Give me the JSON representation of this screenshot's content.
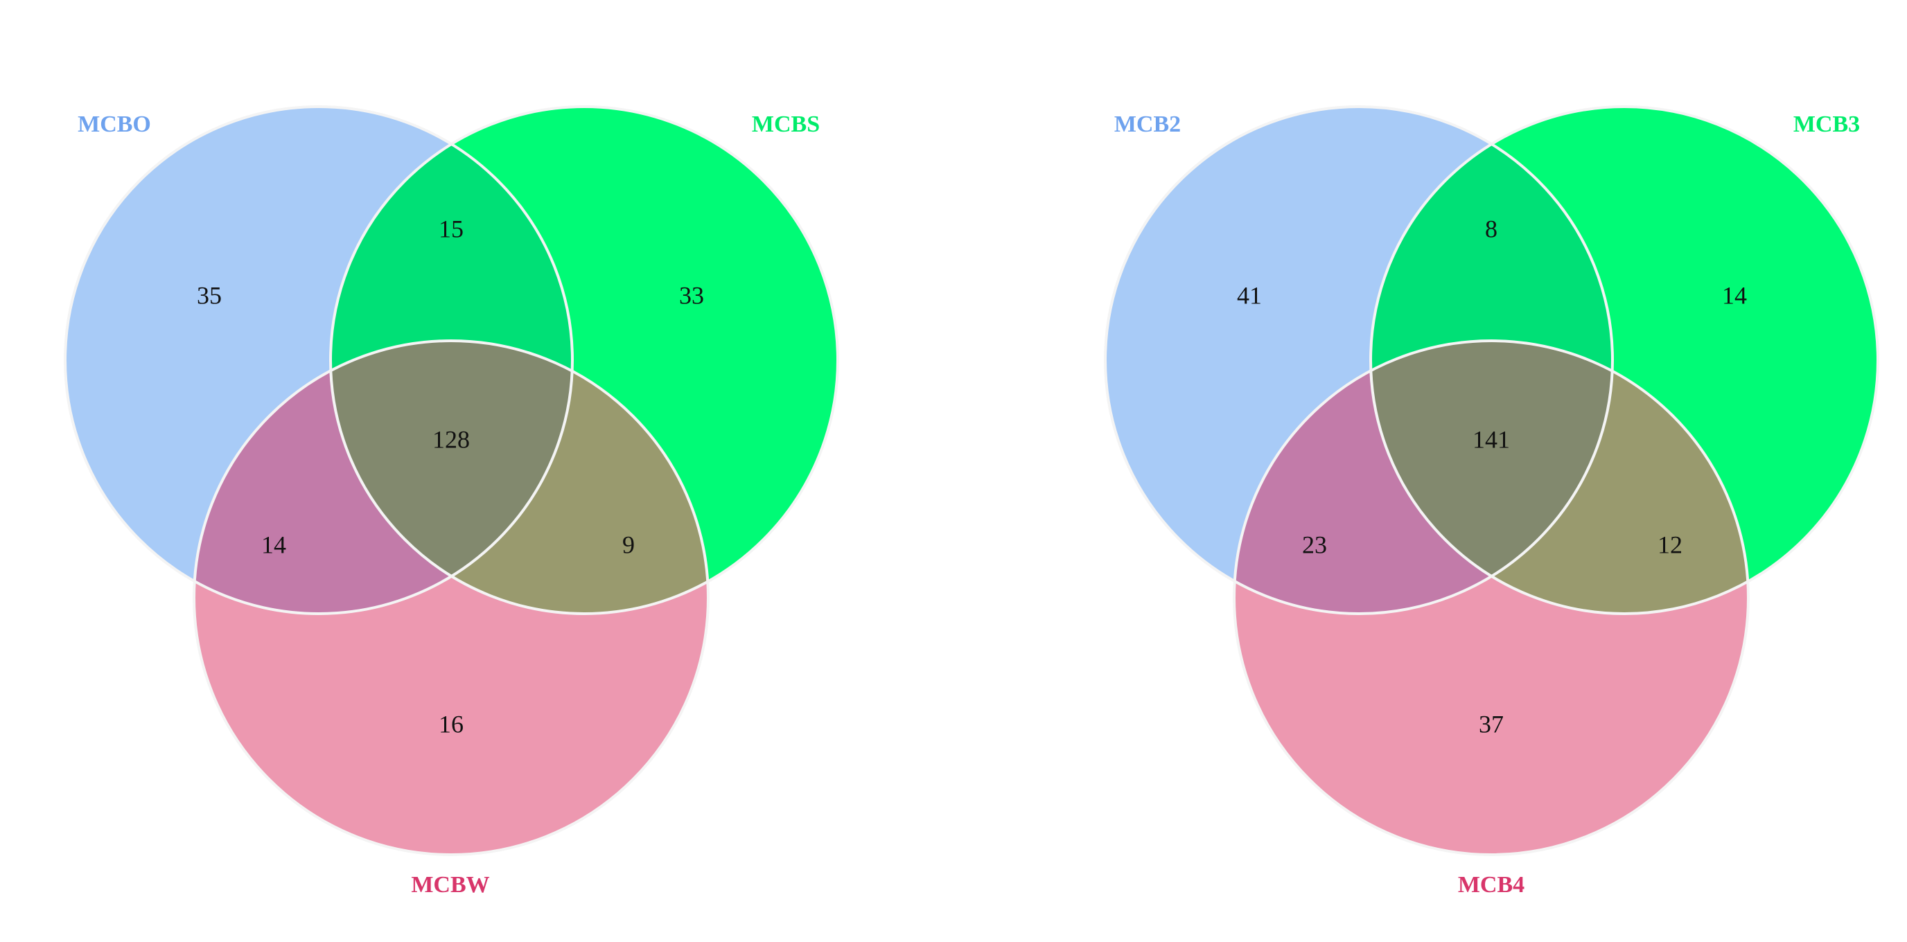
{
  "diagrams": [
    {
      "sets": [
        {
          "label": "MCBO",
          "color": "#6ea2ee"
        },
        {
          "label": "MCBS",
          "color": "#00ec6a"
        },
        {
          "label": "MCBW",
          "color": "#d8356a"
        }
      ],
      "regions": {
        "a_only": "35",
        "b_only": "33",
        "c_only": "16",
        "ab": "15",
        "ac": "14",
        "bc": "9",
        "abc": "128"
      }
    },
    {
      "sets": [
        {
          "label": "MCB2",
          "color": "#6ea2ee"
        },
        {
          "label": "MCB3",
          "color": "#00ec6a"
        },
        {
          "label": "MCB4",
          "color": "#d8356a"
        }
      ],
      "regions": {
        "a_only": "41",
        "b_only": "14",
        "c_only": "37",
        "ab": "8",
        "ac": "23",
        "bc": "12",
        "abc": "141"
      }
    }
  ],
  "fills": {
    "a_only": "#a8cbf7",
    "b_only": "#00fb76",
    "c_only": "#ed98b0",
    "ab": "#00e076",
    "ac": "#c27ba9",
    "bc": "#999a6e",
    "abc": "#82896e"
  }
}
